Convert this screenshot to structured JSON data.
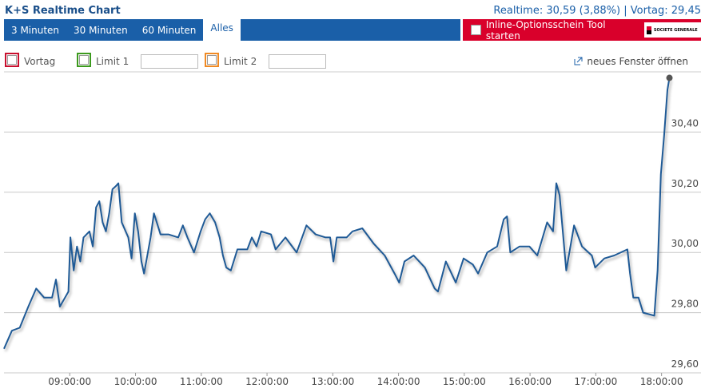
{
  "header": {
    "title": "K+S Realtime Chart",
    "quote": "Realtime: 30,59 (3,88%) | Vortag: 29,45"
  },
  "tabs": [
    "3 Minuten",
    "30 Minuten",
    "60 Minuten",
    "Alles"
  ],
  "promo": {
    "label": "Inline-Optionsschein Tool starten",
    "logo": "SOCIETE GENERALE"
  },
  "controls": {
    "vortag": "Vortag",
    "limit1": "Limit 1",
    "limit2": "Limit 2",
    "new_window": "neues Fenster öffnen"
  },
  "chart_data": {
    "type": "line",
    "color": "#1f5a96",
    "grid": true,
    "xlim": [
      8,
      18.6
    ],
    "ylim": [
      29.6,
      30.6
    ],
    "xticks": [
      {
        "value": 9,
        "label": "09:00:00"
      },
      {
        "value": 10,
        "label": "10:00:00"
      },
      {
        "value": 11,
        "label": "11:00:00"
      },
      {
        "value": 12,
        "label": "12:00:00"
      },
      {
        "value": 13,
        "label": "13:00:00"
      },
      {
        "value": 14,
        "label": "14:00:00"
      },
      {
        "value": 15,
        "label": "15:00:00"
      },
      {
        "value": 16,
        "label": "16:00:00"
      },
      {
        "value": 17,
        "label": "17:00:00"
      },
      {
        "value": 18,
        "label": "18:00:00"
      }
    ],
    "yticks": [
      {
        "value": 29.6,
        "label": "29,60"
      },
      {
        "value": 29.8,
        "label": "29,80"
      },
      {
        "value": 30,
        "label": "30,00"
      },
      {
        "value": 30.2,
        "label": "30,20"
      },
      {
        "value": 30.4,
        "label": "30,40"
      }
    ],
    "x": [
      8.0,
      8.12,
      8.24,
      8.37,
      8.49,
      8.61,
      8.73,
      8.79,
      8.85,
      8.98,
      9.01,
      9.06,
      9.11,
      9.16,
      9.21,
      9.3,
      9.35,
      9.4,
      9.45,
      9.5,
      9.55,
      9.6,
      9.65,
      9.7,
      9.74,
      9.79,
      9.89,
      9.94,
      9.99,
      10.04,
      10.09,
      10.13,
      10.18,
      10.23,
      10.28,
      10.38,
      10.5,
      10.65,
      10.72,
      10.79,
      10.89,
      10.99,
      11.06,
      11.13,
      11.21,
      11.28,
      11.33,
      11.38,
      11.45,
      11.55,
      11.7,
      11.77,
      11.84,
      11.91,
      12.06,
      12.13,
      12.28,
      12.45,
      12.6,
      12.74,
      12.89,
      12.96,
      13.01,
      13.06,
      13.21,
      13.3,
      13.45,
      13.62,
      13.79,
      13.94,
      14.01,
      14.09,
      14.23,
      14.4,
      14.55,
      14.6,
      14.72,
      14.87,
      14.99,
      15.13,
      15.21,
      15.35,
      15.5,
      15.6,
      15.65,
      15.7,
      15.84,
      15.99,
      16.11,
      16.26,
      16.35,
      16.4,
      16.45,
      16.55,
      16.67,
      16.79,
      16.94,
      16.99,
      17.13,
      17.28,
      17.48,
      17.52,
      17.57,
      17.65,
      17.72,
      17.89,
      17.94,
      17.99,
      18.04,
      18.09,
      18.12
    ],
    "values": [
      29.68,
      29.74,
      29.75,
      29.82,
      29.88,
      29.85,
      29.85,
      29.91,
      29.82,
      29.87,
      30.05,
      29.94,
      30.02,
      29.97,
      30.05,
      30.07,
      30.02,
      30.15,
      30.17,
      30.1,
      30.07,
      30.13,
      30.21,
      30.22,
      30.23,
      30.1,
      30.05,
      29.98,
      30.13,
      30.07,
      29.97,
      29.93,
      29.99,
      30.05,
      30.13,
      30.06,
      30.06,
      30.05,
      30.09,
      30.05,
      30.0,
      30.07,
      30.11,
      30.13,
      30.1,
      30.05,
      29.99,
      29.95,
      29.94,
      30.01,
      30.01,
      30.05,
      30.02,
      30.07,
      30.06,
      30.01,
      30.05,
      30.0,
      30.09,
      30.06,
      30.05,
      30.05,
      29.97,
      30.05,
      30.05,
      30.07,
      30.08,
      30.03,
      29.99,
      29.93,
      29.9,
      29.97,
      29.99,
      29.95,
      29.88,
      29.87,
      29.97,
      29.9,
      29.98,
      29.96,
      29.93,
      30.0,
      30.02,
      30.11,
      30.12,
      30.0,
      30.02,
      30.02,
      29.99,
      30.1,
      30.07,
      30.23,
      30.19,
      29.94,
      30.09,
      30.02,
      29.99,
      29.95,
      29.98,
      29.99,
      30.01,
      29.93,
      29.85,
      29.85,
      29.8,
      29.79,
      29.94,
      30.26,
      30.39,
      30.54,
      30.58
    ]
  }
}
